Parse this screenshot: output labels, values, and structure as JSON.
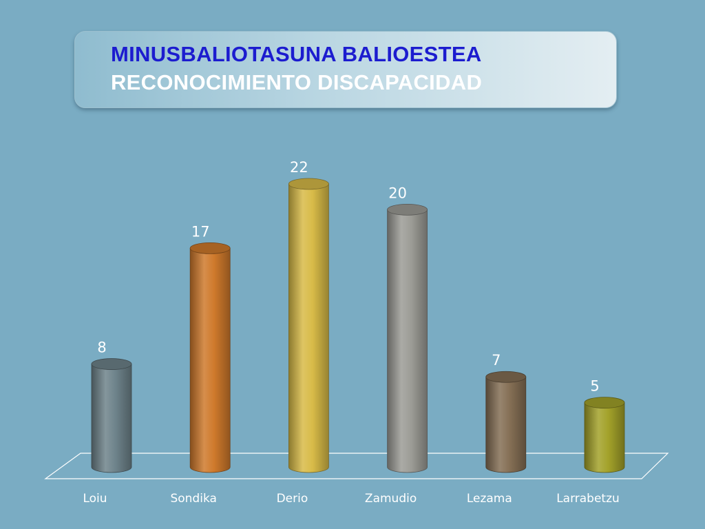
{
  "title": {
    "line1": "MINUSBALIOTASUNA BALIOESTEA",
    "line2": "RECONOCIMIENTO DISCAPACIDAD"
  },
  "chart_data": {
    "type": "bar",
    "title": "MINUSBALIOTASUNA BALIOESTEA RECONOCIMIENTO DISCAPACIDAD",
    "categories": [
      "Loiu",
      "Sondika",
      "Derio",
      "Zamudio",
      "Lezama",
      "Larrabetzu"
    ],
    "values": [
      8,
      17,
      22,
      20,
      7,
      5
    ],
    "colors": [
      "#6e838b",
      "#cf7a2c",
      "#d8bb48",
      "#9c9c96",
      "#856f55",
      "#a3a22a"
    ],
    "ylim": [
      0,
      22
    ],
    "grid": false,
    "legend": "none",
    "data_labels": true,
    "style": "3d-cylinder"
  }
}
